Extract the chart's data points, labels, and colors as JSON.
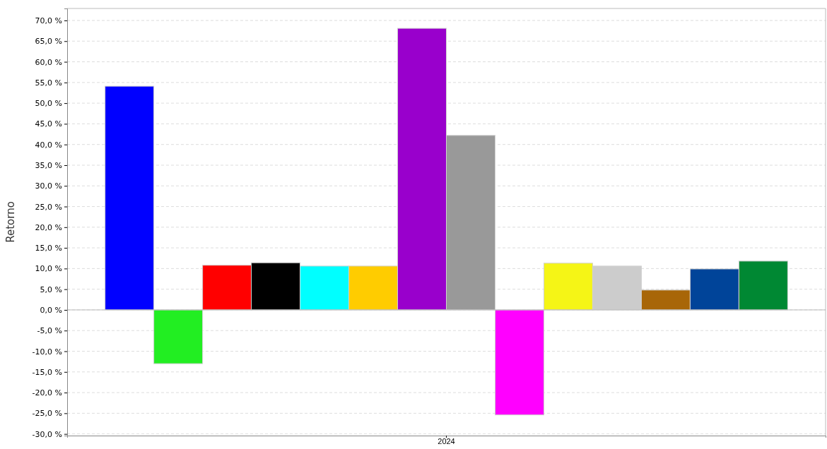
{
  "chart_data": {
    "type": "bar",
    "ylabel": "Retorno",
    "categories": [
      "2024"
    ],
    "ylim": [
      -30.4,
      72.9
    ],
    "yticks": [
      {
        "value": -30,
        "label": "-30,0 %"
      },
      {
        "value": -25,
        "label": "-25,0 %"
      },
      {
        "value": -20,
        "label": "-20,0 %"
      },
      {
        "value": -15,
        "label": "-15,0 %"
      },
      {
        "value": -10,
        "label": "-10,0 %"
      },
      {
        "value": -5,
        "label": "-5,0 %"
      },
      {
        "value": 0,
        "label": "0,0 %"
      },
      {
        "value": 5,
        "label": "5,0 %"
      },
      {
        "value": 10,
        "label": "10,0 %"
      },
      {
        "value": 15,
        "label": "15,0 %"
      },
      {
        "value": 20,
        "label": "20,0 %"
      },
      {
        "value": 25,
        "label": "25,0 %"
      },
      {
        "value": 30,
        "label": "30,0 %"
      },
      {
        "value": 35,
        "label": "35,0 %"
      },
      {
        "value": 40,
        "label": "40,0 %"
      },
      {
        "value": 45,
        "label": "45,0 %"
      },
      {
        "value": 50,
        "label": "50,0 %"
      },
      {
        "value": 55,
        "label": "55,0 %"
      },
      {
        "value": 60,
        "label": "60,0 %"
      },
      {
        "value": 65,
        "label": "65,0 %"
      },
      {
        "value": 70,
        "label": "70,0 %"
      }
    ],
    "grid": "y",
    "series": [
      {
        "color": "#0000ff",
        "values": [
          54.1
        ]
      },
      {
        "color": "#22ee22",
        "values": [
          -13.0
        ]
      },
      {
        "color": "#ff0000",
        "values": [
          10.8
        ]
      },
      {
        "color": "#000000",
        "values": [
          11.4
        ]
      },
      {
        "color": "#00ffff",
        "values": [
          10.6
        ]
      },
      {
        "color": "#ffcc00",
        "values": [
          10.6
        ]
      },
      {
        "color": "#9900cc",
        "values": [
          68.1
        ]
      },
      {
        "color": "#999999",
        "values": [
          42.2
        ]
      },
      {
        "color": "#ff00ff",
        "values": [
          -25.4
        ]
      },
      {
        "color": "#f5f516",
        "values": [
          11.3
        ]
      },
      {
        "color": "#cccccc",
        "values": [
          10.6
        ]
      },
      {
        "color": "#a86608",
        "values": [
          4.8
        ]
      },
      {
        "color": "#004499",
        "values": [
          9.9
        ]
      },
      {
        "color": "#008833",
        "values": [
          11.8
        ]
      }
    ]
  }
}
